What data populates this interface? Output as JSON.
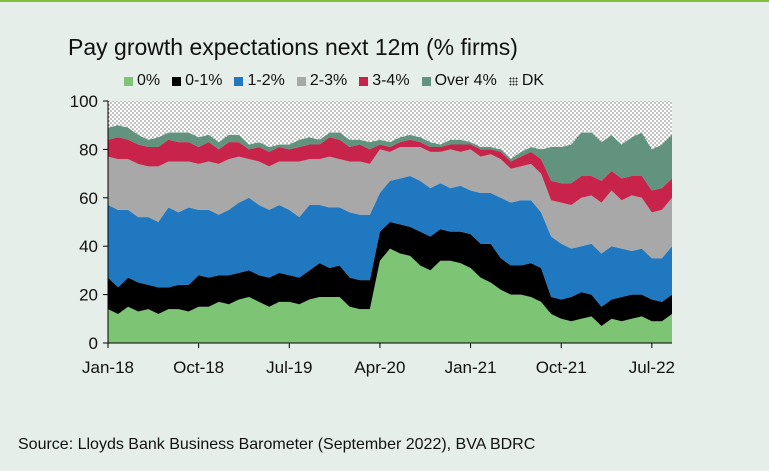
{
  "title": "Pay growth expectations next 12m (% firms)",
  "source": "Source: Lloyds Bank Business Barometer (September 2022), BVA BDRC",
  "colors": {
    "0%": "#7dc474",
    "0-1%": "#000000",
    "1-2%": "#1f78c0",
    "2-3%": "#a8a8a8",
    "3-4%": "#c8234a",
    "Over 4%": "#62937e",
    "DK": "#2e2e2e",
    "background": "#e6eeea",
    "accent_line": "#7fbf3a"
  },
  "chart_data": {
    "type": "area",
    "subtype": "stacked",
    "x_tick_labels": [
      "Jan-18",
      "Oct-18",
      "Jul-19",
      "Apr-20",
      "Jan-21",
      "Oct-21",
      "Jul-22"
    ],
    "x_tick_index": [
      0,
      9,
      18,
      27,
      36,
      45,
      54
    ],
    "y_ticks": [
      0,
      20,
      40,
      60,
      80,
      100
    ],
    "ylim": [
      0,
      100
    ],
    "xlim_months": [
      "Jan-18",
      "Sep-22"
    ],
    "grid": false,
    "legend_position": "top",
    "series": [
      {
        "name": "0%",
        "values": [
          14,
          12,
          15,
          13,
          14,
          12,
          14,
          14,
          13,
          15,
          15,
          17,
          16,
          18,
          19,
          17,
          15,
          17,
          17,
          16,
          18,
          19,
          19,
          19,
          15,
          14,
          14,
          34,
          39,
          37,
          36,
          32,
          30,
          34,
          34,
          33,
          31,
          27,
          25,
          22,
          20,
          20,
          19,
          17,
          12,
          10,
          9,
          10,
          11,
          7,
          10,
          9,
          10,
          11,
          9,
          9,
          12
        ]
      },
      {
        "name": "0-1%",
        "values": [
          13,
          11,
          12,
          12,
          10,
          11,
          9,
          10,
          11,
          13,
          12,
          11,
          12,
          11,
          11,
          11,
          12,
          12,
          11,
          11,
          12,
          14,
          12,
          13,
          12,
          12,
          12,
          12,
          11,
          12,
          12,
          14,
          14,
          13,
          12,
          13,
          14,
          14,
          16,
          13,
          12,
          12,
          14,
          14,
          7,
          8,
          10,
          11,
          9,
          8,
          8,
          10,
          10,
          9,
          9,
          8,
          8
        ]
      },
      {
        "name": "1-2%",
        "values": [
          30,
          32,
          28,
          27,
          28,
          27,
          33,
          30,
          32,
          27,
          28,
          25,
          27,
          29,
          30,
          29,
          28,
          28,
          27,
          25,
          27,
          24,
          25,
          24,
          27,
          27,
          27,
          16,
          17,
          19,
          21,
          21,
          20,
          19,
          18,
          19,
          18,
          21,
          21,
          25,
          26,
          27,
          26,
          23,
          25,
          23,
          20,
          19,
          21,
          22,
          22,
          20,
          18,
          19,
          17,
          18,
          20
        ]
      },
      {
        "name": "2-3%",
        "values": [
          20,
          21,
          21,
          22,
          21,
          23,
          19,
          21,
          19,
          19,
          20,
          21,
          21,
          19,
          16,
          18,
          18,
          18,
          20,
          23,
          19,
          19,
          21,
          20,
          21,
          22,
          21,
          18,
          12,
          13,
          12,
          14,
          15,
          13,
          16,
          14,
          17,
          15,
          16,
          16,
          14,
          14,
          15,
          16,
          15,
          17,
          18,
          20,
          20,
          21,
          23,
          20,
          23,
          21,
          19,
          20,
          20
        ]
      },
      {
        "name": "3-4%",
        "values": [
          7,
          9,
          8,
          8,
          8,
          8,
          9,
          8,
          8,
          7,
          8,
          6,
          7,
          6,
          4,
          6,
          6,
          6,
          5,
          6,
          6,
          6,
          8,
          8,
          6,
          7,
          6,
          2,
          2,
          2,
          3,
          2,
          2,
          2,
          2,
          3,
          2,
          3,
          2,
          3,
          3,
          4,
          5,
          6,
          8,
          8,
          9,
          9,
          8,
          9,
          8,
          9,
          8,
          9,
          9,
          9,
          8
        ]
      },
      {
        "name": "Over 4%",
        "values": [
          5,
          5,
          5,
          4,
          3,
          4,
          3,
          4,
          4,
          4,
          3,
          3,
          3,
          3,
          2,
          2,
          2,
          1,
          2,
          3,
          3,
          2,
          2,
          3,
          3,
          2,
          3,
          2,
          2,
          2,
          2,
          2,
          2,
          1,
          2,
          2,
          1,
          1,
          1,
          1,
          1,
          2,
          2,
          4,
          14,
          15,
          16,
          18,
          18,
          16,
          15,
          14,
          16,
          18,
          17,
          18,
          18
        ]
      },
      {
        "name": "DK",
        "values": [
          11,
          10,
          11,
          14,
          16,
          15,
          13,
          13,
          13,
          15,
          14,
          17,
          14,
          14,
          18,
          17,
          19,
          18,
          18,
          16,
          15,
          16,
          13,
          13,
          16,
          16,
          17,
          16,
          17,
          15,
          14,
          15,
          17,
          18,
          16,
          16,
          17,
          19,
          19,
          20,
          24,
          21,
          19,
          20,
          19,
          19,
          18,
          13,
          13,
          17,
          14,
          18,
          15,
          13,
          20,
          18,
          14
        ]
      }
    ]
  }
}
